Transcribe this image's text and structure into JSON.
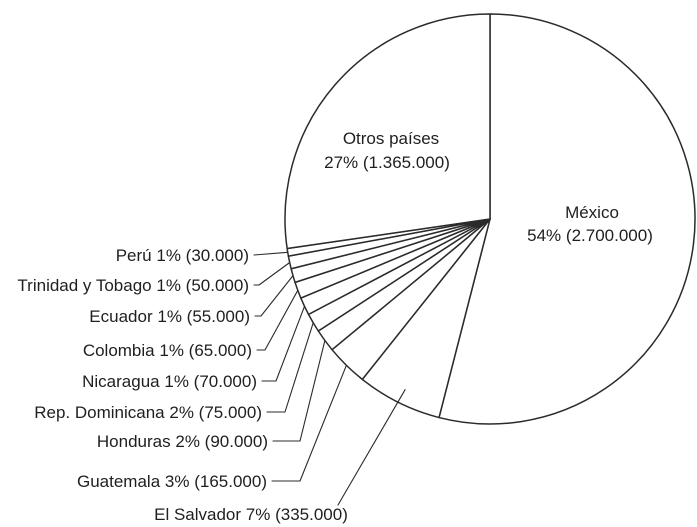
{
  "chart_data": {
    "type": "pie",
    "slices": [
      {
        "name": "México",
        "percent": "54%",
        "amount": "(2.700.000)",
        "value": 2700000
      },
      {
        "name": "El Salvador",
        "percent": "7%",
        "amount": "(335.000)",
        "value": 335000
      },
      {
        "name": "Guatemala",
        "percent": "3%",
        "amount": "(165.000)",
        "value": 165000
      },
      {
        "name": "Honduras",
        "percent": "2%",
        "amount": "(90.000)",
        "value": 90000
      },
      {
        "name": "Rep. Dominicana",
        "percent": "2%",
        "amount": "(75.000)",
        "value": 75000
      },
      {
        "name": "Nicaragua",
        "percent": "1%",
        "amount": "(70.000)",
        "value": 70000
      },
      {
        "name": "Colombia",
        "percent": "1%",
        "amount": "(65.000)",
        "value": 65000
      },
      {
        "name": "Ecuador",
        "percent": "1%",
        "amount": "(55.000)",
        "value": 55000
      },
      {
        "name": "Trinidad y Tobago",
        "percent": "1%",
        "amount": "(50.000)",
        "value": 50000
      },
      {
        "name": "Perú",
        "percent": "1%",
        "amount": "(30.000)",
        "value": 30000
      },
      {
        "name": "Otros países",
        "percent": "27%",
        "amount": "(1.365.000)",
        "value": 1365000
      }
    ],
    "colors": {
      "fill": "#ffffff",
      "stroke": "#2b2b2b",
      "text": "#1f1f1f"
    }
  }
}
